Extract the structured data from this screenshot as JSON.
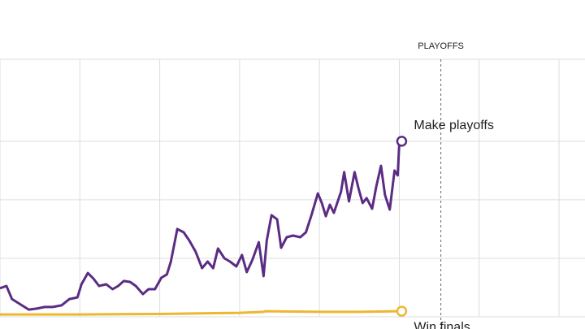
{
  "chart_data": {
    "type": "line",
    "xlim": [
      0,
      73.25
    ],
    "xticks": [
      0,
      10,
      20,
      30,
      40,
      50,
      60,
      70
    ],
    "ylim": [
      0,
      110
    ],
    "yticks": [
      0,
      25,
      50,
      75
    ],
    "grid": true,
    "annotations": [
      {
        "text": "PLAYOFFS",
        "x": 55.2
      }
    ],
    "series": [
      {
        "name": "Make playoffs",
        "color": "#5b2c83",
        "x": [
          0,
          0.8,
          1.5,
          2.6,
          3.6,
          4.6,
          5.6,
          6.6,
          7.7,
          8.7,
          9.7,
          10.2,
          11.0,
          11.7,
          12.4,
          13.3,
          14.1,
          14.8,
          15.5,
          16.3,
          17.0,
          17.9,
          18.6,
          19.4,
          20.2,
          20.9,
          21.4,
          22.2,
          23.0,
          23.7,
          24.5,
          25.3,
          26.0,
          26.7,
          27.3,
          28.1,
          28.8,
          29.6,
          30.3,
          30.9,
          31.6,
          32.4,
          33.0,
          33.4,
          34.0,
          34.7,
          35.2,
          35.9,
          36.7,
          37.6,
          38.3,
          39.0,
          39.8,
          40.3,
          40.8,
          41.3,
          41.8,
          42.7,
          43.1,
          43.7,
          44.4,
          44.9,
          45.4,
          45.9,
          46.6,
          47.1,
          47.7,
          48.2,
          48.8,
          49.4,
          49.8,
          50.0,
          50.3
        ],
        "values": [
          12.2,
          13.2,
          7.6,
          5.2,
          3.1,
          3.5,
          4.2,
          4.2,
          4.9,
          7.6,
          8.3,
          13.9,
          18.7,
          16.3,
          13.2,
          13.9,
          11.8,
          13.2,
          15.3,
          14.9,
          13.2,
          9.7,
          11.8,
          11.8,
          16.7,
          18.1,
          23.6,
          37.5,
          36.1,
          32.6,
          27.8,
          20.8,
          23.6,
          20.8,
          29.2,
          25.0,
          23.6,
          21.5,
          26.4,
          19.1,
          24.3,
          31.9,
          17.4,
          32.6,
          43.4,
          41.6,
          29.5,
          34.0,
          34.7,
          34.0,
          36.1,
          43.4,
          52.7,
          48.6,
          43.0,
          47.9,
          44.4,
          53.4,
          61.8,
          49.3,
          61.8,
          54.8,
          48.6,
          50.7,
          46.2,
          55.5,
          64.5,
          52.1,
          45.8,
          62.5,
          60.4,
          74.6,
          75.0
        ]
      },
      {
        "name": "Win finals",
        "color": "#ecb731",
        "x": [
          0,
          10,
          20,
          30,
          33,
          33.2,
          40,
          45,
          50,
          50.3
        ],
        "values": [
          1.0,
          1.0,
          1.2,
          1.7,
          2.1,
          2.4,
          2.1,
          2.1,
          2.4,
          2.4
        ]
      }
    ]
  }
}
